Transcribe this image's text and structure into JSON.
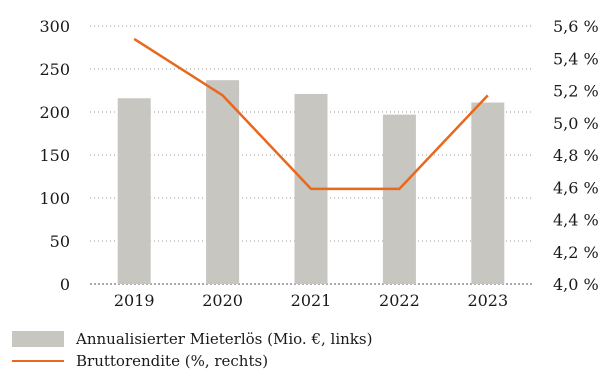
{
  "chart_data": {
    "type": "bar+line",
    "categories": [
      "2019",
      "2020",
      "2021",
      "2022",
      "2023"
    ],
    "series": [
      {
        "name": "Annualisierter Mieterlös (Mio. €, links)",
        "kind": "bar",
        "axis": "left",
        "values": [
          216,
          237,
          221,
          197,
          211
        ],
        "color": "#c7c6c1"
      },
      {
        "name": "Bruttorendite (%, rechts)",
        "kind": "line",
        "axis": "right",
        "values": [
          5.52,
          5.17,
          4.59,
          4.59,
          5.17
        ],
        "color": "#e8681e"
      }
    ],
    "y_left": {
      "min": 0,
      "max": 300,
      "ticks": [
        "0",
        "50",
        "100",
        "150",
        "200",
        "250",
        "300"
      ]
    },
    "y_right": {
      "min": 4.0,
      "max": 5.6,
      "ticks": [
        "4,0 %",
        "4,2 %",
        "4,4 %",
        "4,6 %",
        "4,8 %",
        "5,0 %",
        "5,2 %",
        "5,4 %",
        "5,6 %"
      ]
    },
    "grid": true,
    "legend": "bottom-left"
  }
}
